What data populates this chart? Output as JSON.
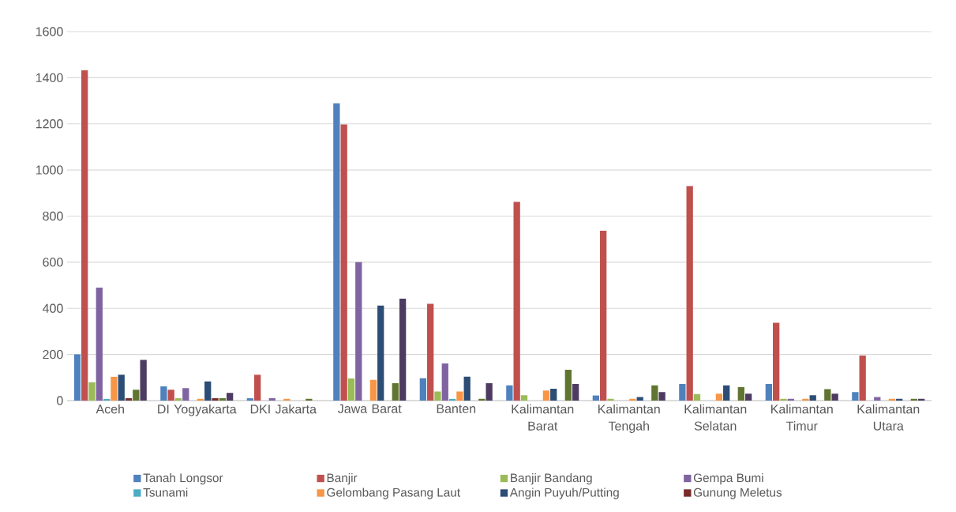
{
  "chart_data": {
    "type": "bar",
    "categories": [
      "Aceh",
      "DI Yogyakarta",
      "DKI Jakarta",
      "Jawa Barat",
      "Banten",
      "Kalimantan Barat",
      "Kalimantan Tengah",
      "Kalimantan Selatan",
      "Kalimantan Timur",
      "Kalimantan Utara"
    ],
    "series": [
      {
        "name": "Tanah Longsor",
        "color": "#4f81bd",
        "values": [
          200,
          62,
          10,
          1289,
          97,
          66,
          22,
          72,
          72,
          37
        ]
      },
      {
        "name": "Banjir",
        "color": "#c0504d",
        "values": [
          1432,
          47,
          112,
          1197,
          420,
          862,
          737,
          930,
          337,
          195
        ]
      },
      {
        "name": "Banjir Bandang",
        "color": "#9bbb59",
        "values": [
          80,
          10,
          0,
          96,
          39,
          23,
          8,
          28,
          8,
          0
        ]
      },
      {
        "name": "Gempa Bumi",
        "color": "#8064a2",
        "values": [
          490,
          54,
          10,
          600,
          161,
          0,
          0,
          0,
          8,
          15
        ]
      },
      {
        "name": "Tsunami",
        "color": "#4bacc6",
        "values": [
          8,
          0,
          0,
          0,
          8,
          0,
          0,
          0,
          0,
          0
        ]
      },
      {
        "name": "Gelombang Pasang Laut",
        "color": "#f79646",
        "values": [
          104,
          8,
          8,
          90,
          39,
          44,
          8,
          30,
          8,
          8
        ]
      },
      {
        "name": "Angin Puyuh/Putting",
        "color": "#2c4d75",
        "values": [
          112,
          83,
          0,
          412,
          104,
          51,
          15,
          66,
          23,
          8
        ]
      },
      {
        "name": "Gunung Meletus",
        "color": "#772c2a",
        "values": [
          10,
          10,
          0,
          0,
          0,
          0,
          0,
          0,
          0,
          0
        ]
      },
      {
        "color": "#5f7530",
        "values": [
          47,
          10,
          8,
          75,
          8,
          134,
          66,
          58,
          50,
          8
        ]
      },
      {
        "color": "#4d3b62",
        "values": [
          176,
          33,
          0,
          442,
          75,
          72,
          37,
          30,
          30,
          8
        ]
      }
    ],
    "ylim": [
      0,
      1600
    ],
    "yticks": [
      0,
      200,
      400,
      600,
      800,
      1000,
      1200,
      1400,
      1600
    ],
    "grid": "y",
    "legend": "bottom"
  }
}
